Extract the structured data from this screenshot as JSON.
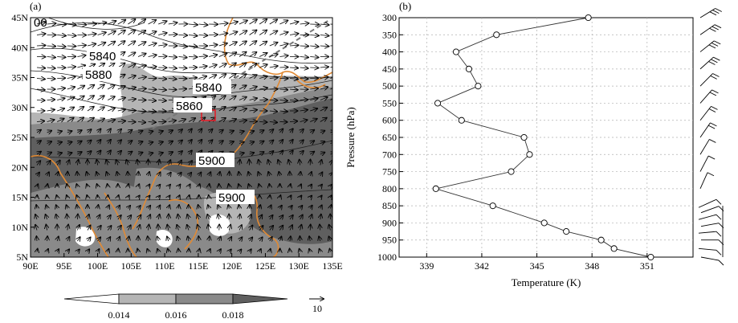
{
  "panel_a": {
    "label": "(a)",
    "x_ticks": [
      "90E",
      "95E",
      "100E",
      "105E",
      "110E",
      "115E",
      "120E",
      "125E",
      "130E",
      "135E"
    ],
    "y_ticks": [
      "5N",
      "10N",
      "15N",
      "20N",
      "25N",
      "30N",
      "35N",
      "40N",
      "45N"
    ],
    "contour_labels": [
      "5840",
      "5880",
      "5840",
      "5860",
      "5900",
      "5900",
      "00"
    ],
    "colorbar": {
      "ticks": [
        "0.014",
        "0.016",
        "0.018"
      ],
      "colors": [
        "#ffffff",
        "#b5b5b5",
        "#8a8a8a",
        "#5f5f5f"
      ]
    },
    "vector_ref": "10",
    "coast_color": "#e08a35",
    "box_color": "#e0202a"
  },
  "chart_data": {
    "type": "line",
    "title": "",
    "label": "(b)",
    "xlabel": "Temperature (K)",
    "ylabel": "Pressure (hPa)",
    "xlim": [
      337.5,
      353.5
    ],
    "ylim": [
      1000,
      300
    ],
    "x_ticks": [
      "339",
      "342",
      "345",
      "348",
      "351"
    ],
    "y_ticks": [
      "300",
      "350",
      "400",
      "450",
      "500",
      "550",
      "600",
      "650",
      "700",
      "750",
      "800",
      "850",
      "900",
      "950",
      "1000"
    ],
    "grid": true,
    "series": [
      {
        "pressure": [
          300,
          350,
          400,
          450,
          500,
          550,
          600,
          650,
          700,
          750,
          800,
          850,
          900,
          925,
          950,
          975,
          1000
        ],
        "temperature": [
          347.8,
          342.8,
          340.6,
          341.3,
          341.8,
          339.6,
          340.9,
          344.3,
          344.6,
          343.6,
          339.5,
          342.6,
          345.4,
          346.6,
          348.5,
          349.2,
          351.2
        ]
      }
    ]
  }
}
